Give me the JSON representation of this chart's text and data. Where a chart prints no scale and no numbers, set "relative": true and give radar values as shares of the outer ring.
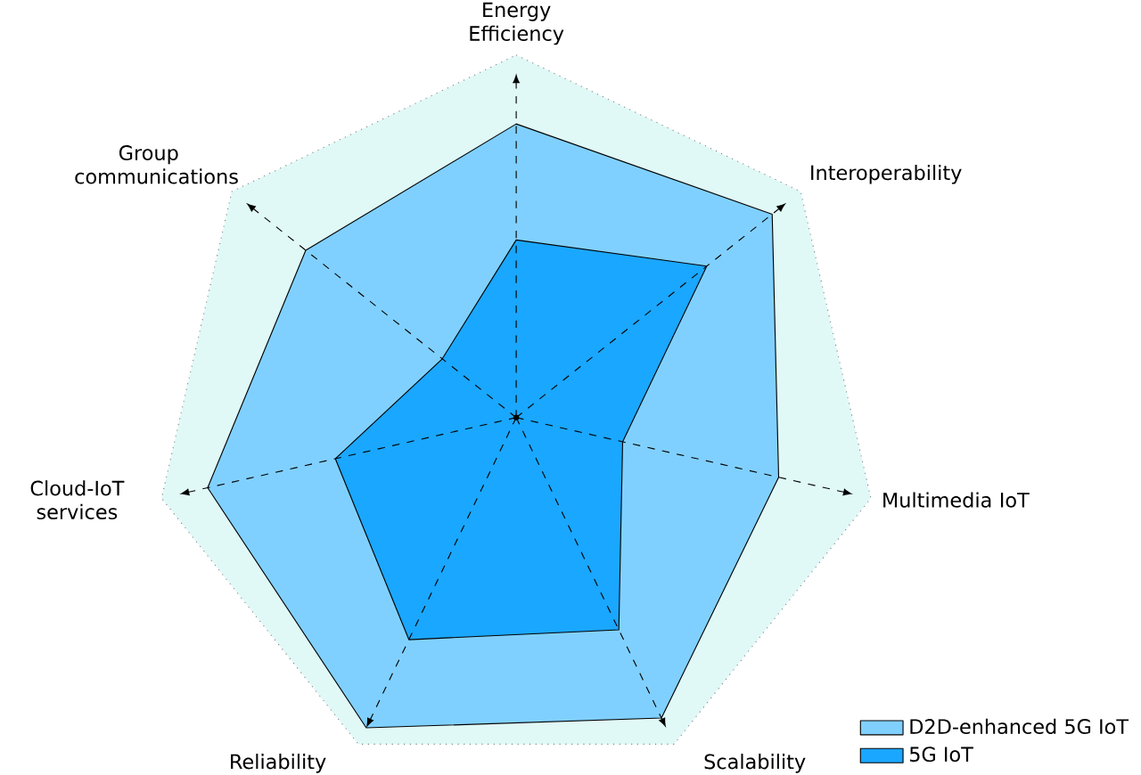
{
  "chart_data": {
    "type": "radar",
    "relative": true,
    "categories": [
      "Energy Efficiency",
      "Interoperability",
      "Multimedia IoT",
      "Scalability",
      "Reliability",
      "Cloud-IoT services",
      "Group communications"
    ],
    "series": [
      {
        "name": "5G IoT",
        "color": "#1aa7ff",
        "values": [
          0.49,
          0.67,
          0.3,
          0.65,
          0.68,
          0.51,
          0.26
        ]
      },
      {
        "name": "D2D-enhanced 5G IoT",
        "color": "#80d0ff",
        "values": [
          0.81,
          0.9,
          0.74,
          0.92,
          0.95,
          0.87,
          0.74
        ]
      }
    ],
    "legend": "bottom right",
    "marker": "none",
    "grid": false
  }
}
